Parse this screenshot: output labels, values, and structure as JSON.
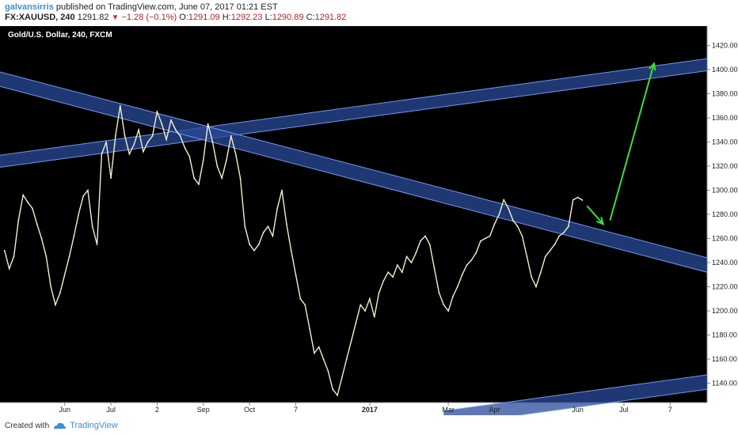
{
  "header": {
    "author": "galvansirris",
    "published_text": "published on TradingView.com, June 07, 2017 01:21 EST",
    "symbol": "FX:XAUUSD, 240",
    "last": "1291.82",
    "change": "−1.28 (−0.1%)",
    "open_label": "O:",
    "open": "1291.09",
    "high_label": "H:",
    "high": "1292.23",
    "low_label": "L:",
    "low": "1290.89",
    "close_label": "C:",
    "close": "1291.82"
  },
  "footer": {
    "created_with": "Created with",
    "brand": "TradingView"
  },
  "colors": {
    "background": "#000000",
    "price_line": "#f2f0c8",
    "channel_fill": "#2a4a9a",
    "channel_edge": "#6f9ae8",
    "arrow": "#3ddc35"
  },
  "chart_data": {
    "type": "line",
    "title": "Gold/U.S. Dollar, 240, FXCM",
    "ylim": [
      1124,
      1436
    ],
    "y_ticks": [
      "1140.00",
      "1160.00",
      "1180.00",
      "1200.00",
      "1220.00",
      "1240.00",
      "1260.00",
      "1280.00",
      "1300.00",
      "1320.00",
      "1340.00",
      "1360.00",
      "1380.00",
      "1400.00",
      "1420.00"
    ],
    "x_ticks": [
      {
        "label": "Jun",
        "bold": false,
        "i": 14
      },
      {
        "label": "Jul",
        "bold": false,
        "i": 24
      },
      {
        "label": "2",
        "bold": false,
        "i": 34
      },
      {
        "label": "Sep",
        "bold": false,
        "i": 44
      },
      {
        "label": "Oct",
        "bold": false,
        "i": 54
      },
      {
        "label": "7",
        "bold": false,
        "i": 64
      },
      {
        "label": "2017",
        "bold": true,
        "i": 80
      },
      {
        "label": "Mar",
        "bold": false,
        "i": 97
      },
      {
        "label": "Apr",
        "bold": false,
        "i": 107
      },
      {
        "label": "Jun",
        "bold": false,
        "i": 125
      },
      {
        "label": "Jul",
        "bold": false,
        "i": 135
      },
      {
        "label": "7",
        "bold": false,
        "i": 145
      }
    ],
    "x_count": 153,
    "series": [
      {
        "values": [
          1250,
          1235,
          1245,
          1275,
          1296,
          1290,
          1285,
          1272,
          1260,
          1245,
          1220,
          1205,
          1215,
          1230,
          1245,
          1262,
          1280,
          1295,
          1300,
          1270,
          1255,
          1330,
          1340,
          1310,
          1345,
          1370,
          1345,
          1330,
          1338,
          1350,
          1332,
          1340,
          1345,
          1365,
          1355,
          1342,
          1358,
          1350,
          1345,
          1335,
          1328,
          1310,
          1305,
          1325,
          1355,
          1340,
          1320,
          1310,
          1325,
          1345,
          1330,
          1310,
          1270,
          1255,
          1250,
          1255,
          1265,
          1270,
          1262,
          1285,
          1300,
          1272,
          1250,
          1230,
          1210,
          1205,
          1185,
          1165,
          1170,
          1160,
          1150,
          1135,
          1130,
          1145,
          1160,
          1175,
          1190,
          1205,
          1200,
          1210,
          1195,
          1215,
          1225,
          1232,
          1228,
          1238,
          1232,
          1245,
          1240,
          1248,
          1258,
          1262,
          1255,
          1235,
          1215,
          1205,
          1200,
          1212,
          1220,
          1230,
          1238,
          1242,
          1248,
          1258,
          1260,
          1262,
          1272,
          1280,
          1292,
          1285,
          1275,
          1270,
          1262,
          1245,
          1228,
          1220,
          1232,
          1245,
          1250,
          1255,
          1262,
          1265,
          1270,
          1292,
          1294,
          1291.82
        ]
      }
    ],
    "annotations": {
      "channels": [
        {
          "name": "upper-rising",
          "p1": {
            "i": 0,
            "v": 1324
          },
          "p2": {
            "i": 153,
            "v": 1404
          },
          "width": 10
        },
        {
          "name": "falling",
          "p1": {
            "i": 0,
            "v": 1392
          },
          "p2": {
            "i": 153,
            "v": 1238
          },
          "width": 12
        },
        {
          "name": "lower-rising",
          "p1": {
            "i": 96,
            "v": 1111
          },
          "p2": {
            "i": 153,
            "v": 1141
          },
          "width": 12
        }
      ],
      "arrows": [
        {
          "from": {
            "i": 127,
            "v": 1287
          },
          "to": {
            "i": 130.5,
            "v": 1272
          }
        },
        {
          "from": {
            "i": 132,
            "v": 1275
          },
          "to": {
            "i": 141.5,
            "v": 1405
          }
        }
      ]
    }
  }
}
